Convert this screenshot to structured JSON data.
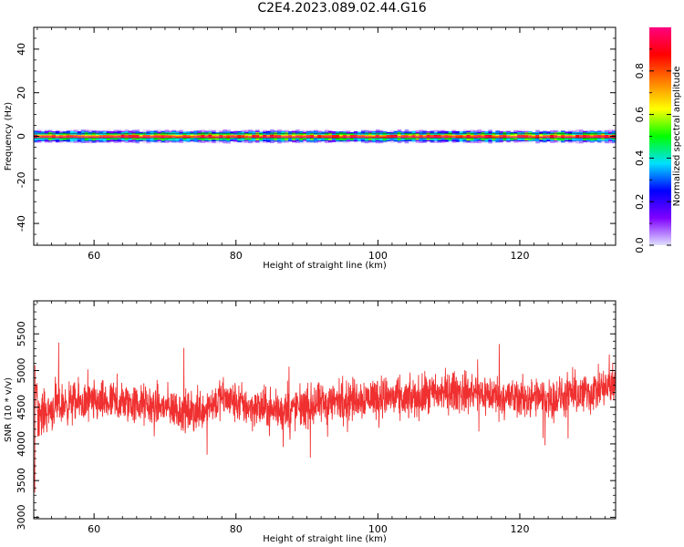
{
  "title": "C2E4.2023.089.02.44.G16",
  "chart_data": [
    {
      "type": "heatmap",
      "xlabel": "Height of straight line (km)",
      "ylabel": "Frequency (Hz)",
      "xlim": [
        51.5,
        133.5
      ],
      "ylim": [
        -50,
        50
      ],
      "xticks": [
        60,
        80,
        100,
        120
      ],
      "yticks": [
        40,
        20,
        0,
        -20,
        -40
      ],
      "colorbar": {
        "label": "Normalized spectral amplitude",
        "range": [
          0,
          1
        ],
        "ticks": [
          "0.0",
          "0.2",
          "0.4",
          "0.6",
          "0.8"
        ],
        "colormap": [
          "#e0e0ff",
          "#7f00ff",
          "#0000ff",
          "#00e0ff",
          "#00ff00",
          "#ffff00",
          "#ff8000",
          "#ff0000",
          "#ff0080"
        ]
      },
      "band": {
        "center_hz": 0,
        "profile_hz": [
          {
            "offset": 0.0,
            "amp": 1.0
          },
          {
            "offset": 0.7,
            "amp": 0.75
          },
          {
            "offset": 1.3,
            "amp": 0.45
          },
          {
            "offset": 1.9,
            "amp": 0.25
          },
          {
            "offset": 2.6,
            "amp": 0.1
          }
        ]
      },
      "grid": false
    },
    {
      "type": "line",
      "xlabel": "Height of straight line (km)",
      "ylabel": "SNR (10 * v/v)",
      "xlim": [
        51.5,
        133.5
      ],
      "ylim": [
        2980,
        5950
      ],
      "xticks": [
        60,
        80,
        100,
        120
      ],
      "yticks": [
        3000,
        3500,
        4000,
        4500,
        5000,
        5500
      ],
      "color": "#f03030",
      "trend": [
        {
          "x": 52,
          "y": 4400
        },
        {
          "x": 56,
          "y": 4550
        },
        {
          "x": 60,
          "y": 4560
        },
        {
          "x": 65,
          "y": 4550
        },
        {
          "x": 70,
          "y": 4500
        },
        {
          "x": 74,
          "y": 4420
        },
        {
          "x": 78,
          "y": 4620
        },
        {
          "x": 82,
          "y": 4500
        },
        {
          "x": 86,
          "y": 4450
        },
        {
          "x": 90,
          "y": 4500
        },
        {
          "x": 95,
          "y": 4600
        },
        {
          "x": 100,
          "y": 4650
        },
        {
          "x": 104,
          "y": 4600
        },
        {
          "x": 110,
          "y": 4720
        },
        {
          "x": 115,
          "y": 4680
        },
        {
          "x": 120,
          "y": 4620
        },
        {
          "x": 125,
          "y": 4620
        },
        {
          "x": 130,
          "y": 4700
        },
        {
          "x": 133.5,
          "y": 4800
        }
      ],
      "noise_amplitude": 260,
      "grid": false
    }
  ]
}
